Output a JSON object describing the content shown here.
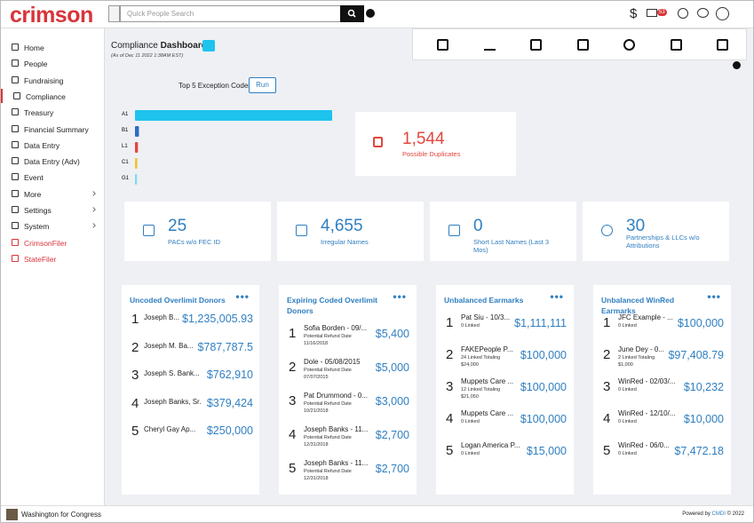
{
  "header": {
    "logo": "crimson",
    "search_placeholder": "Quick People Search",
    "mail_badge": "53"
  },
  "sidebar": {
    "items": [
      "Home",
      "People",
      "Fundraising",
      "Compliance",
      "Treasury",
      "Financial Summary",
      "Data Entry",
      "Data Entry (Adv)",
      "Event",
      "More",
      "Settings",
      "System",
      "CrimsonFiler",
      "StateFiler"
    ]
  },
  "dashboard": {
    "title_prefix": "Compliance",
    "title_bold": "Dashboard",
    "as_of": "(As of Dec 11 2022 1:38AM EST)"
  },
  "exception": {
    "label": "Top 5 Exception Codes",
    "button": "Run"
  },
  "chart_data": {
    "type": "bar",
    "orientation": "horizontal",
    "categories": [
      "A1",
      "B1",
      "L1",
      "C1",
      "G1"
    ],
    "values": [
      100,
      2,
      1.5,
      1.2,
      1
    ],
    "colors": [
      "#1ec3ee",
      "#2d6cc4",
      "#e2463d",
      "#f2c335",
      "#7fd8f2"
    ]
  },
  "duplicates": {
    "value": "1,544",
    "label": "Possible Duplicates"
  },
  "stats": [
    {
      "value": "25",
      "label": "PACs w/o FEC ID"
    },
    {
      "value": "4,655",
      "label": "Irregular Names"
    },
    {
      "value": "0",
      "label": "Short Last Names (Last 3 Mos)"
    },
    {
      "value": "30",
      "label": "Partnerships & LLCs w/o Attributions"
    }
  ],
  "lists": [
    {
      "title": "Uncoded Overlimit Donors",
      "items": [
        {
          "rank": "1",
          "name": "Joseph B...",
          "amount": "$1,235,005.93"
        },
        {
          "rank": "2",
          "name": "Joseph M. Ba...",
          "amount": "$787,787.5"
        },
        {
          "rank": "3",
          "name": "Joseph S. Bank...",
          "amount": "$762,910"
        },
        {
          "rank": "4",
          "name": "Joseph Banks, Sr.",
          "amount": "$379,424"
        },
        {
          "rank": "5",
          "name": "Cheryl Gay Ap...",
          "amount": "$250,000"
        }
      ]
    },
    {
      "title": "Expiring Coded Overlimit Donors",
      "items": [
        {
          "rank": "1",
          "name": "Sofia Borden - 09/...",
          "sub": "Potential Refund Date",
          "sub2": "11/16/2018",
          "amount": "$5,400"
        },
        {
          "rank": "2",
          "name": "Dole - 05/08/2015",
          "sub": "Potential Refund Date",
          "sub2": "07/07/2015",
          "amount": "$5,000"
        },
        {
          "rank": "3",
          "name": "Pat Drummond - 0...",
          "sub": "Potential Refund Date",
          "sub2": "10/21/2018",
          "amount": "$3,000"
        },
        {
          "rank": "4",
          "name": "Joseph Banks - 11...",
          "sub": "Potential Refund Date",
          "sub2": "12/31/2018",
          "amount": "$2,700"
        },
        {
          "rank": "5",
          "name": "Joseph Banks - 11...",
          "sub": "Potential Refund Date",
          "sub2": "12/31/2018",
          "amount": "$2,700"
        }
      ]
    },
    {
      "title": "Unbalanced Earmarks",
      "items": [
        {
          "rank": "1",
          "name": "Pat Siu - 10/3...",
          "sub": "0 Linked",
          "amount": "$1,111,111"
        },
        {
          "rank": "2",
          "name": "FAKEPeople P...",
          "sub": "24 Linked Totaling",
          "sub2": "$24,000",
          "amount": "$100,000"
        },
        {
          "rank": "3",
          "name": "Muppets Care ...",
          "sub": "12 Linked Totaling",
          "sub2": "$21,050",
          "amount": "$100,000"
        },
        {
          "rank": "4",
          "name": "Muppets Care ...",
          "sub": "0 Linked",
          "amount": "$100,000"
        },
        {
          "rank": "5",
          "name": "Logan America P...",
          "sub": "0 Linked",
          "amount": "$15,000"
        }
      ]
    },
    {
      "title": "Unbalanced WinRed Earmarks",
      "items": [
        {
          "rank": "1",
          "name": "JFC Example - ...",
          "sub": "0 Linked",
          "amount": "$100,000"
        },
        {
          "rank": "2",
          "name": "June Dey - 0...",
          "sub": "2 Linked Totaling",
          "sub2": "$1,000",
          "amount": "$97,408.79"
        },
        {
          "rank": "3",
          "name": "WinRed - 02/03/...",
          "sub": "0 Linked",
          "amount": "$10,232"
        },
        {
          "rank": "4",
          "name": "WinRed - 12/10/...",
          "sub": "0 Linked",
          "amount": "$10,000"
        },
        {
          "rank": "5",
          "name": "WinRed - 06/0...",
          "sub": "0 Linked",
          "amount": "$7,472.18"
        }
      ]
    }
  ],
  "footer": {
    "account": "Washington for Congress",
    "powered": "Powered by",
    "brand": "CMDI",
    "copyright": "© 2022"
  }
}
